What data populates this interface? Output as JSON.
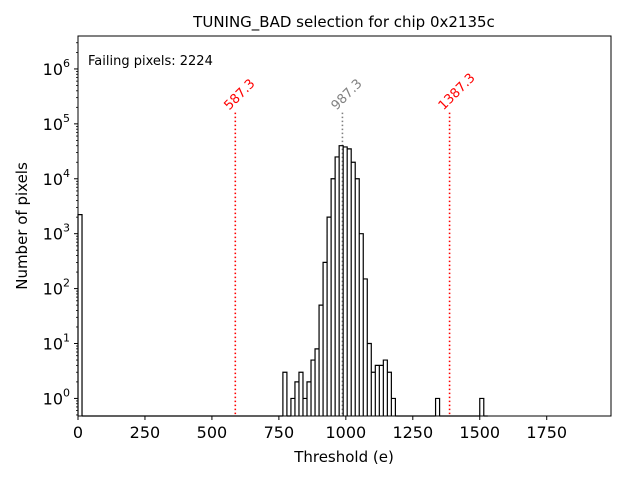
{
  "chart_data": {
    "type": "histogram",
    "title": "TUNING_BAD selection for chip 0x2135c",
    "xlabel": "Threshold (e)",
    "ylabel": "Number of pixels",
    "xlim": [
      0,
      1990
    ],
    "ylog_range": [
      -0.32,
      6.6
    ],
    "x_ticks": [
      {
        "value": 0,
        "label": "0"
      },
      {
        "value": 250,
        "label": "250"
      },
      {
        "value": 500,
        "label": "500"
      },
      {
        "value": 750,
        "label": "750"
      },
      {
        "value": 1000,
        "label": "1000"
      },
      {
        "value": 1250,
        "label": "1250"
      },
      {
        "value": 1500,
        "label": "1500"
      },
      {
        "value": 1750,
        "label": "1750"
      }
    ],
    "y_ticks": [
      {
        "exp": 0,
        "base": "10",
        "sup": "0"
      },
      {
        "exp": 1,
        "base": "10",
        "sup": "1"
      },
      {
        "exp": 2,
        "base": "10",
        "sup": "2"
      },
      {
        "exp": 3,
        "base": "10",
        "sup": "3"
      },
      {
        "exp": 4,
        "base": "10",
        "sup": "4"
      },
      {
        "exp": 5,
        "base": "10",
        "sup": "5"
      },
      {
        "exp": 6,
        "base": "10",
        "sup": "6"
      }
    ],
    "bin_width": 15,
    "bins": [
      [
        0,
        2224
      ],
      [
        15,
        0
      ],
      [
        30,
        0
      ],
      [
        45,
        0
      ],
      [
        60,
        0
      ],
      [
        75,
        0
      ],
      [
        90,
        0
      ],
      [
        105,
        0
      ],
      [
        120,
        0
      ],
      [
        135,
        0
      ],
      [
        150,
        0
      ],
      [
        165,
        0
      ],
      [
        180,
        0
      ],
      [
        195,
        0
      ],
      [
        210,
        0
      ],
      [
        225,
        0
      ],
      [
        240,
        0
      ],
      [
        255,
        0
      ],
      [
        270,
        0
      ],
      [
        285,
        0
      ],
      [
        300,
        0
      ],
      [
        315,
        0
      ],
      [
        330,
        0
      ],
      [
        345,
        0
      ],
      [
        360,
        0
      ],
      [
        375,
        0
      ],
      [
        390,
        0
      ],
      [
        405,
        0
      ],
      [
        420,
        0
      ],
      [
        435,
        0
      ],
      [
        450,
        0
      ],
      [
        465,
        0
      ],
      [
        480,
        0
      ],
      [
        495,
        0
      ],
      [
        510,
        0
      ],
      [
        525,
        0
      ],
      [
        540,
        0
      ],
      [
        555,
        0
      ],
      [
        570,
        0
      ],
      [
        585,
        0
      ],
      [
        600,
        0
      ],
      [
        615,
        0
      ],
      [
        630,
        0
      ],
      [
        645,
        0
      ],
      [
        660,
        0
      ],
      [
        675,
        0
      ],
      [
        690,
        0
      ],
      [
        705,
        0
      ],
      [
        720,
        0
      ],
      [
        735,
        0
      ],
      [
        750,
        0
      ],
      [
        765,
        3
      ],
      [
        780,
        0
      ],
      [
        795,
        1
      ],
      [
        810,
        2
      ],
      [
        825,
        3
      ],
      [
        840,
        1
      ],
      [
        855,
        2
      ],
      [
        870,
        5
      ],
      [
        885,
        8
      ],
      [
        900,
        50
      ],
      [
        915,
        300
      ],
      [
        930,
        2000
      ],
      [
        945,
        10000
      ],
      [
        960,
        25000
      ],
      [
        975,
        40000
      ],
      [
        990,
        38000
      ],
      [
        1005,
        35000
      ],
      [
        1020,
        20000
      ],
      [
        1035,
        10000
      ],
      [
        1050,
        1000
      ],
      [
        1065,
        150
      ],
      [
        1080,
        10
      ],
      [
        1095,
        3
      ],
      [
        1110,
        4
      ],
      [
        1125,
        4
      ],
      [
        1140,
        5
      ],
      [
        1155,
        3
      ],
      [
        1170,
        1
      ],
      [
        1185,
        0
      ],
      [
        1200,
        0
      ],
      [
        1215,
        0
      ],
      [
        1230,
        0
      ],
      [
        1245,
        0
      ],
      [
        1260,
        0
      ],
      [
        1275,
        0
      ],
      [
        1290,
        0
      ],
      [
        1305,
        0
      ],
      [
        1320,
        0
      ],
      [
        1335,
        1
      ],
      [
        1350,
        0
      ],
      [
        1365,
        0
      ],
      [
        1380,
        0
      ],
      [
        1395,
        0
      ],
      [
        1410,
        0
      ],
      [
        1425,
        0
      ],
      [
        1440,
        0
      ],
      [
        1455,
        0
      ],
      [
        1470,
        0
      ],
      [
        1485,
        0
      ],
      [
        1500,
        1
      ],
      [
        1515,
        0
      ]
    ],
    "vlines": [
      {
        "x": 587.3,
        "label": "587.3",
        "color": "#ff0000",
        "style": "dotted"
      },
      {
        "x": 987.3,
        "label": "987.3",
        "color": "#808080",
        "style": "dotted"
      },
      {
        "x": 1387.3,
        "label": "1387.3",
        "color": "#ff0000",
        "style": "dotted"
      }
    ],
    "annotation": {
      "text": "Failing pixels: 2224",
      "color": "#ff0000",
      "placement": "top-left"
    },
    "line_color": "#000000",
    "grid": false,
    "legend": "none"
  }
}
